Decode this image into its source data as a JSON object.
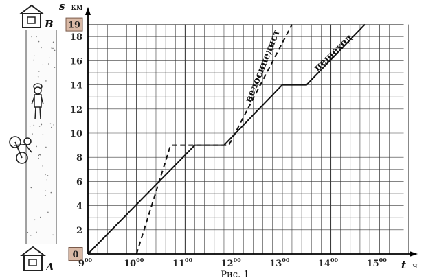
{
  "chart_data": {
    "type": "line",
    "x_axis": {
      "var": "t",
      "unit": "ч",
      "range": [
        9,
        15.5
      ],
      "minor_step": 0.2,
      "tick_labels": [
        {
          "x": 9,
          "hours": "9",
          "minutes": "00"
        },
        {
          "x": 10,
          "hours": "10",
          "minutes": "00"
        },
        {
          "x": 11,
          "hours": "11",
          "minutes": "00"
        },
        {
          "x": 12,
          "hours": "12",
          "minutes": "00"
        },
        {
          "x": 13,
          "hours": "13",
          "minutes": "00"
        },
        {
          "x": 14,
          "hours": "14",
          "minutes": "00"
        },
        {
          "x": 15,
          "hours": "15",
          "minutes": "00"
        }
      ]
    },
    "y_axis": {
      "var": "s",
      "unit": "км",
      "range": [
        0,
        19
      ],
      "minor_step": 1,
      "tick_labels": [
        "2",
        "4",
        "6",
        "8",
        "10",
        "12",
        "14",
        "16",
        "18"
      ],
      "highlighted_labels": [
        {
          "y": 0,
          "text": "0"
        },
        {
          "y": 19,
          "text": "19"
        }
      ],
      "highlight_color": "#d9b9a6"
    },
    "grid": true,
    "series": [
      {
        "name": "пешеход",
        "style": "solid",
        "color": "#111111",
        "points": [
          [
            9,
            0
          ],
          [
            11.2,
            9
          ],
          [
            11.8,
            9
          ],
          [
            13,
            14
          ],
          [
            13.5,
            14
          ],
          [
            14.7,
            19
          ]
        ]
      },
      {
        "name": "велосипедист",
        "style": "dashed",
        "color": "#111111",
        "points": [
          [
            10,
            0
          ],
          [
            10.7,
            9
          ],
          [
            11.9,
            9
          ],
          [
            13.2,
            19
          ]
        ]
      }
    ]
  },
  "caption": "Рис. 1",
  "houses": {
    "top": "B",
    "bottom": "A"
  },
  "road_icons": [
    "pedestrian-figure",
    "bicycle-figure"
  ]
}
